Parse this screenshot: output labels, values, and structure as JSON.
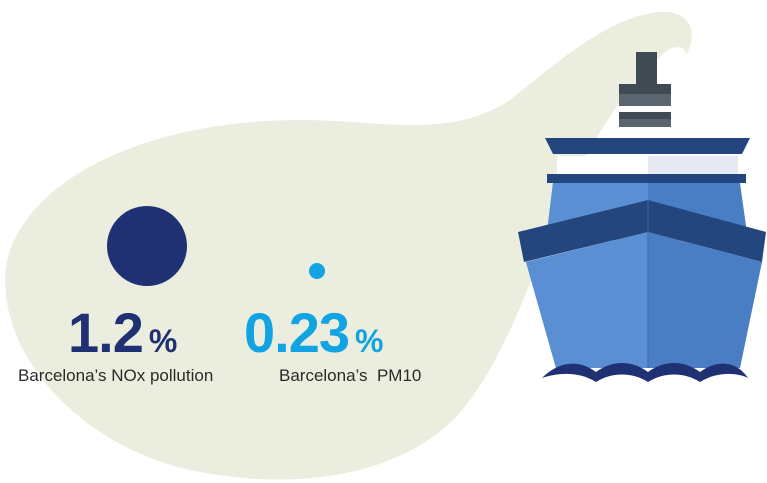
{
  "stats": [
    {
      "value": "1.2",
      "unit": "%",
      "caption": "Barcelona’s NOx pollution",
      "color": "#1f3172"
    },
    {
      "value": "0.23",
      "unit": "%",
      "caption": "Barcelona’s  PM10",
      "color": "#12a3e3"
    }
  ],
  "colors": {
    "smoke_cloud": "#ebeede",
    "ship_hull_dark": "#23467f",
    "ship_hull_mid": "#4a7ec4",
    "ship_hull_light": "#5b8fd4",
    "waves": "#1f3172",
    "funnel": "#3f4a52"
  },
  "icons": [
    "smoke-cloud-shape",
    "cruise-ship-icon",
    "nox-circle-marker",
    "pm10-circle-marker"
  ]
}
